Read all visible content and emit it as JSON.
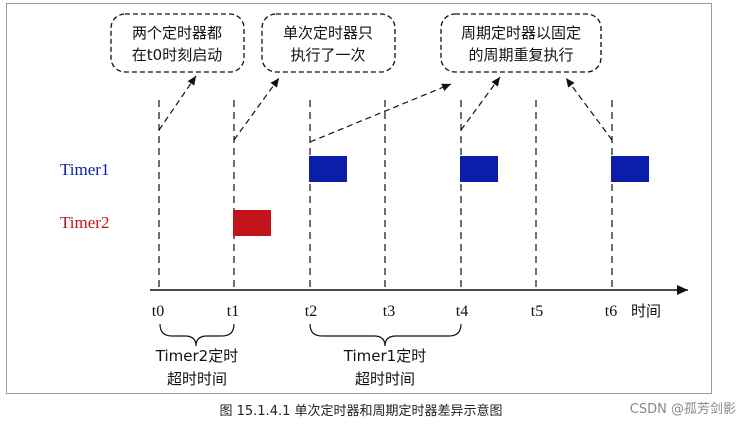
{
  "callouts": [
    {
      "line1": "两个定时器都",
      "line2": "在t0时刻启动"
    },
    {
      "line1": "单次定时器只",
      "line2": "执行了一次"
    },
    {
      "line1": "周期定时器以固定",
      "line2": "的周期重复执行"
    }
  ],
  "timers": {
    "timer1": {
      "label": "Timer1",
      "color": "#0a1eaa"
    },
    "timer2": {
      "label": "Timer2",
      "color": "#c0141a"
    }
  },
  "axis": {
    "ticks": [
      "t0",
      "t1",
      "t2",
      "t3",
      "t4",
      "t5",
      "t6"
    ],
    "unit_label": "时间"
  },
  "notes": {
    "timer2_timeout": {
      "line1": "Timer2定时",
      "line2": "超时时间"
    },
    "timer1_timeout": {
      "line1": "Timer1定时",
      "line2": "超时时间"
    }
  },
  "caption": "图 15.1.4.1 单次定时器和周期定时器差异示意图",
  "watermark": "CSDN @孤芳剑影"
}
